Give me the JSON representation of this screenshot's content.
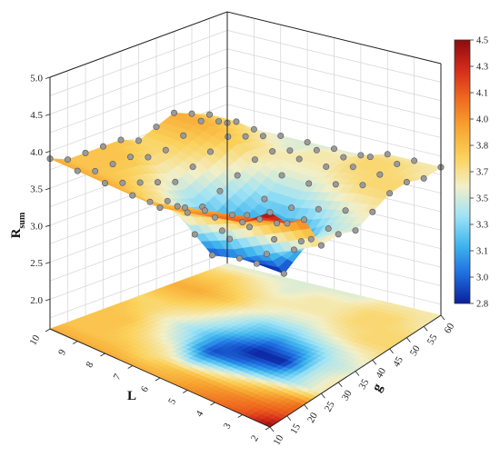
{
  "chart_data": {
    "type": "surface3d",
    "title": "",
    "axes": {
      "z": {
        "label_main": "R",
        "label_sub": "sum",
        "ticks": [
          "2.0",
          "2.5",
          "3.0",
          "3.5",
          "4.0",
          "4.5",
          "5.0"
        ],
        "zlim": [
          1.6,
          5.0
        ]
      },
      "L": {
        "label": "L",
        "ticks": [
          "10",
          "9",
          "8",
          "7",
          "6",
          "5",
          "4",
          "3",
          "2"
        ],
        "range": [
          2,
          10
        ]
      },
      "g": {
        "label": "g",
        "ticks": [
          "10",
          "15",
          "20",
          "25",
          "30",
          "35",
          "40",
          "45",
          "50",
          "55",
          "60"
        ],
        "range": [
          10,
          60
        ]
      }
    },
    "colorbar": {
      "ticks": [
        "2.8",
        "3.0",
        "3.1",
        "3.3",
        "3.5",
        "3.7",
        "3.8",
        "4.0",
        "4.1",
        "4.3",
        "4.5"
      ],
      "range": [
        2.8,
        4.5
      ],
      "colors": [
        "#0a1f9c",
        "#1e6ddf",
        "#3fb6ee",
        "#9fe3f5",
        "#f3efc7",
        "#fbd15a",
        "#f7a530",
        "#ef6a1f",
        "#d42a1b",
        "#8c0b0f"
      ]
    },
    "grid": true,
    "surface": {
      "L_values": [
        2,
        3,
        4,
        5,
        6,
        7,
        8,
        9,
        10
      ],
      "g_values": [
        10,
        15,
        20,
        25,
        30,
        35,
        40,
        45,
        50,
        55,
        60
      ],
      "rows": [
        [
          4.5,
          4.2,
          4.1,
          3.6,
          3.6,
          3.5,
          3.6,
          3.7,
          3.7,
          3.6,
          3.6
        ],
        [
          4.2,
          4.1,
          3.9,
          3.4,
          3.4,
          3.4,
          3.5,
          3.7,
          3.7,
          3.7,
          3.6
        ],
        [
          4.1,
          4.0,
          3.7,
          3.2,
          2.8,
          3.1,
          3.4,
          3.6,
          3.7,
          3.7,
          3.6
        ],
        [
          4.0,
          3.9,
          3.5,
          3.0,
          2.8,
          3.0,
          3.3,
          3.5,
          3.6,
          3.6,
          3.5
        ],
        [
          3.9,
          3.8,
          3.3,
          2.9,
          3.0,
          3.2,
          3.3,
          3.5,
          3.6,
          3.6,
          3.5
        ],
        [
          3.9,
          3.7,
          3.6,
          3.4,
          3.3,
          3.4,
          3.5,
          3.6,
          3.6,
          3.5,
          3.5
        ],
        [
          3.9,
          3.8,
          3.7,
          3.6,
          3.5,
          3.6,
          3.7,
          3.8,
          3.7,
          3.6,
          3.5
        ],
        [
          3.9,
          3.8,
          3.8,
          3.8,
          3.7,
          3.7,
          3.8,
          3.9,
          3.8,
          3.7,
          3.5
        ],
        [
          3.9,
          3.8,
          3.8,
          3.8,
          3.8,
          3.7,
          3.8,
          3.9,
          3.8,
          3.7,
          3.5
        ]
      ]
    }
  }
}
